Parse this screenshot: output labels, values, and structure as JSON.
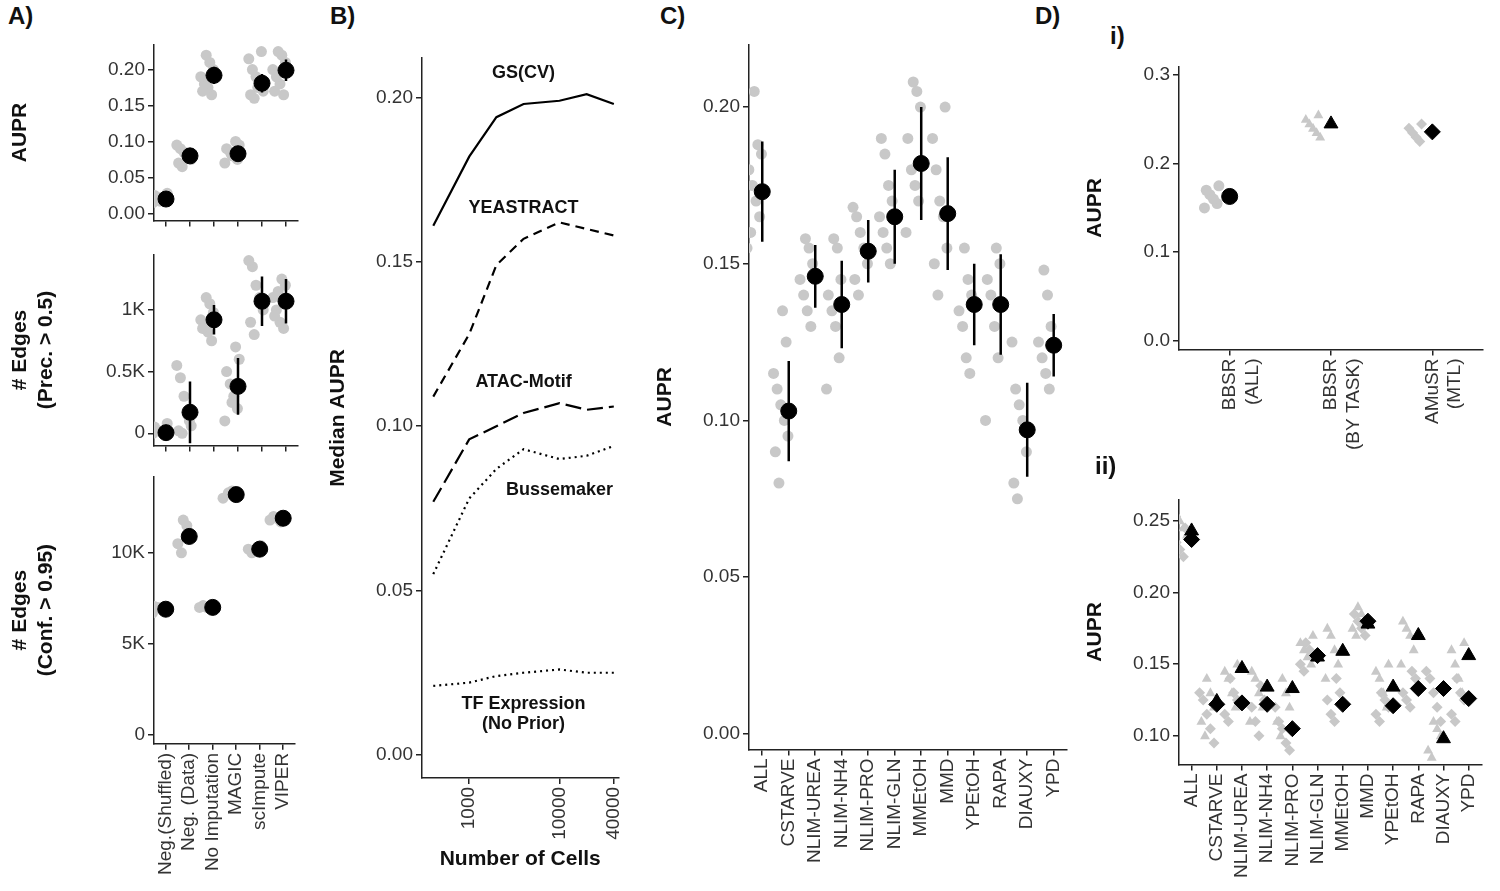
{
  "chart_data": [
    {
      "panel_label": [
        "A)"
      ],
      "type": "scatter",
      "categories": [
        "Neg.(Shuffled)",
        "Neg. (Data)",
        "No Imputation",
        "MAGIC",
        "scImpute",
        "VIPER"
      ],
      "ylabel": "AUPR",
      "ylim": [
        -0.01,
        0.235
      ],
      "yticks": [
        {
          "value": 0,
          "label": "0.00"
        },
        {
          "value": 0.05,
          "label": "0.05"
        },
        {
          "value": 0.1,
          "label": "0.10"
        },
        {
          "value": 0.15,
          "label": "0.15"
        },
        {
          "value": 0.2,
          "label": "0.20"
        }
      ],
      "grid": false,
      "tick_labels": "y",
      "series": [
        {
          "color": "#000000",
          "marker": "circle",
          "values": [
            0.02,
            0.08,
            0.192,
            0.083,
            0.181,
            0.199
          ],
          "errors": [
            0.005,
            0.005,
            0.012,
            0.01,
            0.013,
            0.015
          ],
          "points": [
            [
              0.015,
              0.018,
              0.02,
              0.022,
              0.025,
              0.028,
              0.02,
              0.017
            ],
            [
              0.065,
              0.07,
              0.075,
              0.08,
              0.085,
              0.09,
              0.095,
              0.082
            ],
            [
              0.165,
              0.175,
              0.18,
              0.19,
              0.2,
              0.21,
              0.22,
              0.17,
              0.195
            ],
            [
              0.07,
              0.075,
              0.08,
              0.085,
              0.09,
              0.095,
              0.1,
              0.08
            ],
            [
              0.16,
              0.165,
              0.17,
              0.18,
              0.19,
              0.2,
              0.215,
              0.225,
              0.175
            ],
            [
              0.165,
              0.18,
              0.19,
              0.2,
              0.21,
              0.22,
              0.225,
              0.17
            ]
          ]
        }
      ]
    },
    {
      "type": "scatter",
      "categories": [
        "Neg.(Shuffled)",
        "Neg. (Data)",
        "No Imputation",
        "MAGIC",
        "scImpute",
        "VIPER"
      ],
      "ylabel": "# Edges (Prec. > 0.5)",
      "ylim": [
        -100,
        1450
      ],
      "yticks": [
        0,
        {
          "value": 500,
          "label": "0.5K"
        },
        {
          "value": 1000,
          "label": "1K"
        }
      ],
      "grid": false,
      "tick_labels": "y",
      "series": [
        {
          "color": "#000000",
          "marker": "circle",
          "values": [
            5,
            170,
            920,
            380,
            1070,
            1070
          ],
          "errors": [
            30,
            250,
            120,
            230,
            200,
            180
          ],
          "points": [
            [
              0,
              5,
              10,
              20,
              50,
              80,
              0,
              15
            ],
            [
              0,
              20,
              60,
              150,
              300,
              450,
              550,
              100
            ],
            [
              750,
              820,
              880,
              920,
              980,
              1050,
              1100,
              850
            ],
            [
              100,
              200,
              300,
              400,
              500,
              600,
              700,
              250
            ],
            [
              800,
              900,
              1000,
              1100,
              1200,
              1350,
              1400,
              1050
            ],
            [
              850,
              900,
              1000,
              1100,
              1200,
              1250,
              1150,
              950
            ]
          ]
        }
      ]
    },
    {
      "type": "scatter",
      "categories": [
        "Neg.(Shuffled)",
        "Neg. (Data)",
        "No Imputation",
        "MAGIC",
        "scImpute",
        "VIPER"
      ],
      "ylabel": "# Edges (Conf. > 0.95)",
      "ylim": [
        -500,
        14200
      ],
      "yticks": [
        0,
        {
          "value": 5000,
          "label": "5K"
        },
        {
          "value": 10000,
          "label": "10K"
        }
      ],
      "grid": false,
      "series": [
        {
          "color": "#000000",
          "marker": "circle",
          "values": [
            6900,
            10900,
            7000,
            13200,
            10200,
            11900
          ],
          "errors": [
            100,
            400,
            100,
            150,
            150,
            100
          ],
          "points": [
            [
              6700,
              6800,
              6900,
              7000,
              7050
            ],
            [
              10000,
              10500,
              11000,
              11500,
              11800
            ],
            [
              6900,
              7000,
              7100,
              7000
            ],
            [
              13000,
              13200,
              13400,
              13300
            ],
            [
              10000,
              10200,
              10400,
              10100
            ],
            [
              11700,
              11900,
              12000,
              11800
            ]
          ]
        }
      ]
    },
    {
      "panel_label": [
        "B)"
      ],
      "type": "line",
      "ylabel": "Median AUPR",
      "xlabel": "Number of Cells",
      "log": "x",
      "x": [
        400,
        1000,
        2000,
        4000,
        10000,
        20000,
        40000
      ],
      "xlim": [
        300,
        45000
      ],
      "xticks": [
        1000,
        10000,
        40000
      ],
      "ylim": [
        -0.007,
        0.212
      ],
      "yticks": [
        {
          "value": 0,
          "label": "0.00"
        },
        {
          "value": 0.05,
          "label": "0.05"
        },
        {
          "value": 0.1,
          "label": "0.10"
        },
        {
          "value": 0.15,
          "label": "0.15"
        },
        {
          "value": 0.2,
          "label": "0.20"
        }
      ],
      "grid": false,
      "series": [
        {
          "name": "GS(CV)",
          "color": "#000000",
          "line_style": "solid",
          "values": [
            0.161,
            0.182,
            0.194,
            0.198,
            0.199,
            0.201,
            0.198
          ]
        },
        {
          "name": "YEASTRACT",
          "color": "#000000",
          "line_style": "dashed",
          "values": [
            0.109,
            0.128,
            0.149,
            0.157,
            0.162,
            0.16,
            0.158
          ]
        },
        {
          "name": "ATAC-Motif",
          "color": "#000000",
          "line_style": "longdash",
          "values": [
            0.077,
            0.096,
            0.1,
            0.104,
            0.107,
            0.105,
            0.106
          ]
        },
        {
          "name": "Bussemaker",
          "color": "#000000",
          "line_style": "dotted",
          "values": [
            0.055,
            0.078,
            0.087,
            0.093,
            0.09,
            0.091,
            0.094
          ]
        },
        {
          "name": "TF Expression (No Prior)",
          "color": "#000000",
          "line_style": "dotted",
          "values": [
            0.021,
            0.022,
            0.024,
            0.025,
            0.026,
            0.025,
            0.025
          ]
        }
      ]
    },
    {
      "panel_label": [
        "C)"
      ],
      "type": "scatter",
      "categories": [
        "ALL",
        "CSTARVE",
        "NLIM-UREA",
        "NLIM-NH4",
        "NLIM-PRO",
        "NLIM-GLN",
        "MMEtOH",
        "MMD",
        "YPEtOH",
        "RAPA",
        "DIAUXY",
        "YPD"
      ],
      "ylabel": "AUPR",
      "ylim": [
        -0.005,
        0.22
      ],
      "yticks": [
        {
          "value": 0,
          "label": "0.00"
        },
        {
          "value": 0.05,
          "label": "0.05"
        },
        {
          "value": 0.1,
          "label": "0.10"
        },
        {
          "value": 0.15,
          "label": "0.15"
        },
        {
          "value": 0.2,
          "label": "0.20"
        }
      ],
      "grid": false,
      "series": [
        {
          "color": "#000000",
          "marker": "circle",
          "values": [
            0.173,
            0.103,
            0.146,
            0.137,
            0.154,
            0.165,
            0.182,
            0.166,
            0.137,
            0.137,
            0.097,
            0.124
          ],
          "errors": [
            0.016,
            0.016,
            0.01,
            0.014,
            0.01,
            0.015,
            0.018,
            0.018,
            0.013,
            0.016,
            0.015,
            0.01
          ],
          "points": [
            [
              0.155,
              0.165,
              0.17,
              0.175,
              0.18,
              0.185,
              0.188,
              0.205,
              0.16
            ],
            [
              0.08,
              0.09,
              0.095,
              0.1,
              0.105,
              0.11,
              0.115,
              0.125,
              0.135
            ],
            [
              0.13,
              0.135,
              0.14,
              0.145,
              0.15,
              0.155,
              0.158
            ],
            [
              0.11,
              0.12,
              0.13,
              0.135,
              0.14,
              0.145,
              0.155,
              0.158
            ],
            [
              0.14,
              0.145,
              0.15,
              0.155,
              0.16,
              0.165,
              0.168
            ],
            [
              0.15,
              0.155,
              0.16,
              0.165,
              0.17,
              0.175,
              0.185,
              0.19
            ],
            [
              0.16,
              0.17,
              0.175,
              0.18,
              0.19,
              0.2,
              0.205,
              0.208
            ],
            [
              0.14,
              0.15,
              0.155,
              0.165,
              0.17,
              0.18,
              0.19,
              0.2
            ],
            [
              0.115,
              0.12,
              0.13,
              0.135,
              0.14,
              0.145,
              0.155
            ],
            [
              0.1,
              0.12,
              0.13,
              0.14,
              0.145,
              0.15,
              0.155
            ],
            [
              0.075,
              0.08,
              0.09,
              0.1,
              0.105,
              0.11,
              0.125
            ],
            [
              0.11,
              0.115,
              0.12,
              0.125,
              0.13,
              0.14,
              0.148
            ]
          ]
        }
      ]
    },
    {
      "panel_label": [
        "D)",
        "i)"
      ],
      "type": "scatter",
      "categories": [
        "BBSR (ALL)",
        "BBSR (BY TASK)",
        "AMuSR (MTL)"
      ],
      "ylabel": "AUPR",
      "ylim": [
        -0.01,
        0.31
      ],
      "yticks": [
        {
          "value": 0,
          "label": "0.0"
        },
        {
          "value": 0.1,
          "label": "0.1"
        },
        {
          "value": 0.2,
          "label": "0.2"
        },
        {
          "value": 0.3,
          "label": "0.3"
        }
      ],
      "grid": false,
      "series": [
        {
          "color": "#000000",
          "marker": "circle",
          "values": [
            0.163,
            null,
            null
          ],
          "errors": [
            0.006,
            null,
            null
          ],
          "points": [
            [
              0.15,
              0.155,
              0.16,
              0.165,
              0.17,
              0.175
            ],
            null,
            null
          ]
        },
        {
          "color": "#000000",
          "marker": "triangle",
          "values": [
            null,
            0.245,
            null
          ],
          "points": [
            null,
            [
              0.23,
              0.235,
              0.24,
              0.245,
              0.25,
              0.255
            ],
            null
          ]
        },
        {
          "color": "#000000",
          "marker": "diamond",
          "values": [
            null,
            null,
            0.236
          ],
          "points": [
            null,
            null,
            [
              0.225,
              0.23,
              0.235,
              0.24,
              0.245
            ]
          ]
        }
      ]
    },
    {
      "panel_label": [
        "ii)"
      ],
      "type": "scatter",
      "categories": [
        "ALL",
        "CSTARVE",
        "NLIM-UREA",
        "NLIM-NH4",
        "NLIM-PRO",
        "NLIM-GLN",
        "MMEtOH",
        "MMD",
        "YPEtOH",
        "RAPA",
        "DIAUXY",
        "YPD"
      ],
      "ylabel": "AUPR",
      "ylim": [
        0.08,
        0.265
      ],
      "yticks": [
        {
          "value": 0.1,
          "label": "0.10"
        },
        {
          "value": 0.15,
          "label": "0.15"
        },
        {
          "value": 0.2,
          "label": "0.20"
        },
        {
          "value": 0.25,
          "label": "0.25"
        }
      ],
      "grid": false,
      "series": [
        {
          "color": "#000000",
          "marker": "triangle",
          "values": [
            0.243,
            0.124,
            0.147,
            0.134,
            0.133,
            0.155,
            0.159,
            0.178,
            0.134,
            0.17,
            0.098,
            0.156
          ],
          "points": [
            [
              0.235,
              0.24,
              0.245,
              0.25,
              0.255
            ],
            [
              0.1,
              0.11,
              0.12,
              0.13,
              0.14
            ],
            [
              0.12,
              0.13,
              0.14,
              0.145,
              0.15
            ],
            [
              0.11,
              0.12,
              0.13,
              0.14,
              0.145
            ],
            [
              0.1,
              0.11,
              0.12,
              0.13,
              0.14
            ],
            [
              0.15,
              0.155,
              0.16,
              0.165,
              0.17
            ],
            [
              0.14,
              0.15,
              0.16,
              0.17,
              0.175
            ],
            [
              0.17,
              0.175,
              0.18,
              0.185,
              0.19
            ],
            [
              0.12,
              0.13,
              0.14,
              0.145,
              0.15
            ],
            [
              0.15,
              0.16,
              0.17,
              0.175,
              0.18
            ],
            [
              0.085,
              0.09,
              0.1,
              0.105,
              0.11
            ],
            [
              0.13,
              0.14,
              0.15,
              0.16,
              0.165
            ]
          ]
        },
        {
          "color": "#000000",
          "marker": "diamond",
          "values": [
            0.237,
            0.122,
            0.123,
            0.122,
            0.105,
            0.156,
            0.122,
            0.18,
            0.121,
            0.133,
            0.133,
            0.126
          ],
          "points": [
            [
              0.225,
              0.23,
              0.235,
              0.24,
              0.245
            ],
            [
              0.095,
              0.105,
              0.115,
              0.125,
              0.13
            ],
            [
              0.11,
              0.115,
              0.125,
              0.13,
              0.14
            ],
            [
              0.1,
              0.11,
              0.12,
              0.125,
              0.135
            ],
            [
              0.09,
              0.095,
              0.105,
              0.11,
              0.12
            ],
            [
              0.145,
              0.15,
              0.155,
              0.16,
              0.165
            ],
            [
              0.11,
              0.115,
              0.125,
              0.13,
              0.14
            ],
            [
              0.17,
              0.175,
              0.18,
              0.185
            ],
            [
              0.11,
              0.115,
              0.12,
              0.125,
              0.13
            ],
            [
              0.12,
              0.125,
              0.13,
              0.14,
              0.145
            ],
            [
              0.11,
              0.12,
              0.13,
              0.14,
              0.145
            ],
            [
              0.11,
              0.115,
              0.125,
              0.13,
              0.14
            ]
          ]
        }
      ]
    }
  ]
}
